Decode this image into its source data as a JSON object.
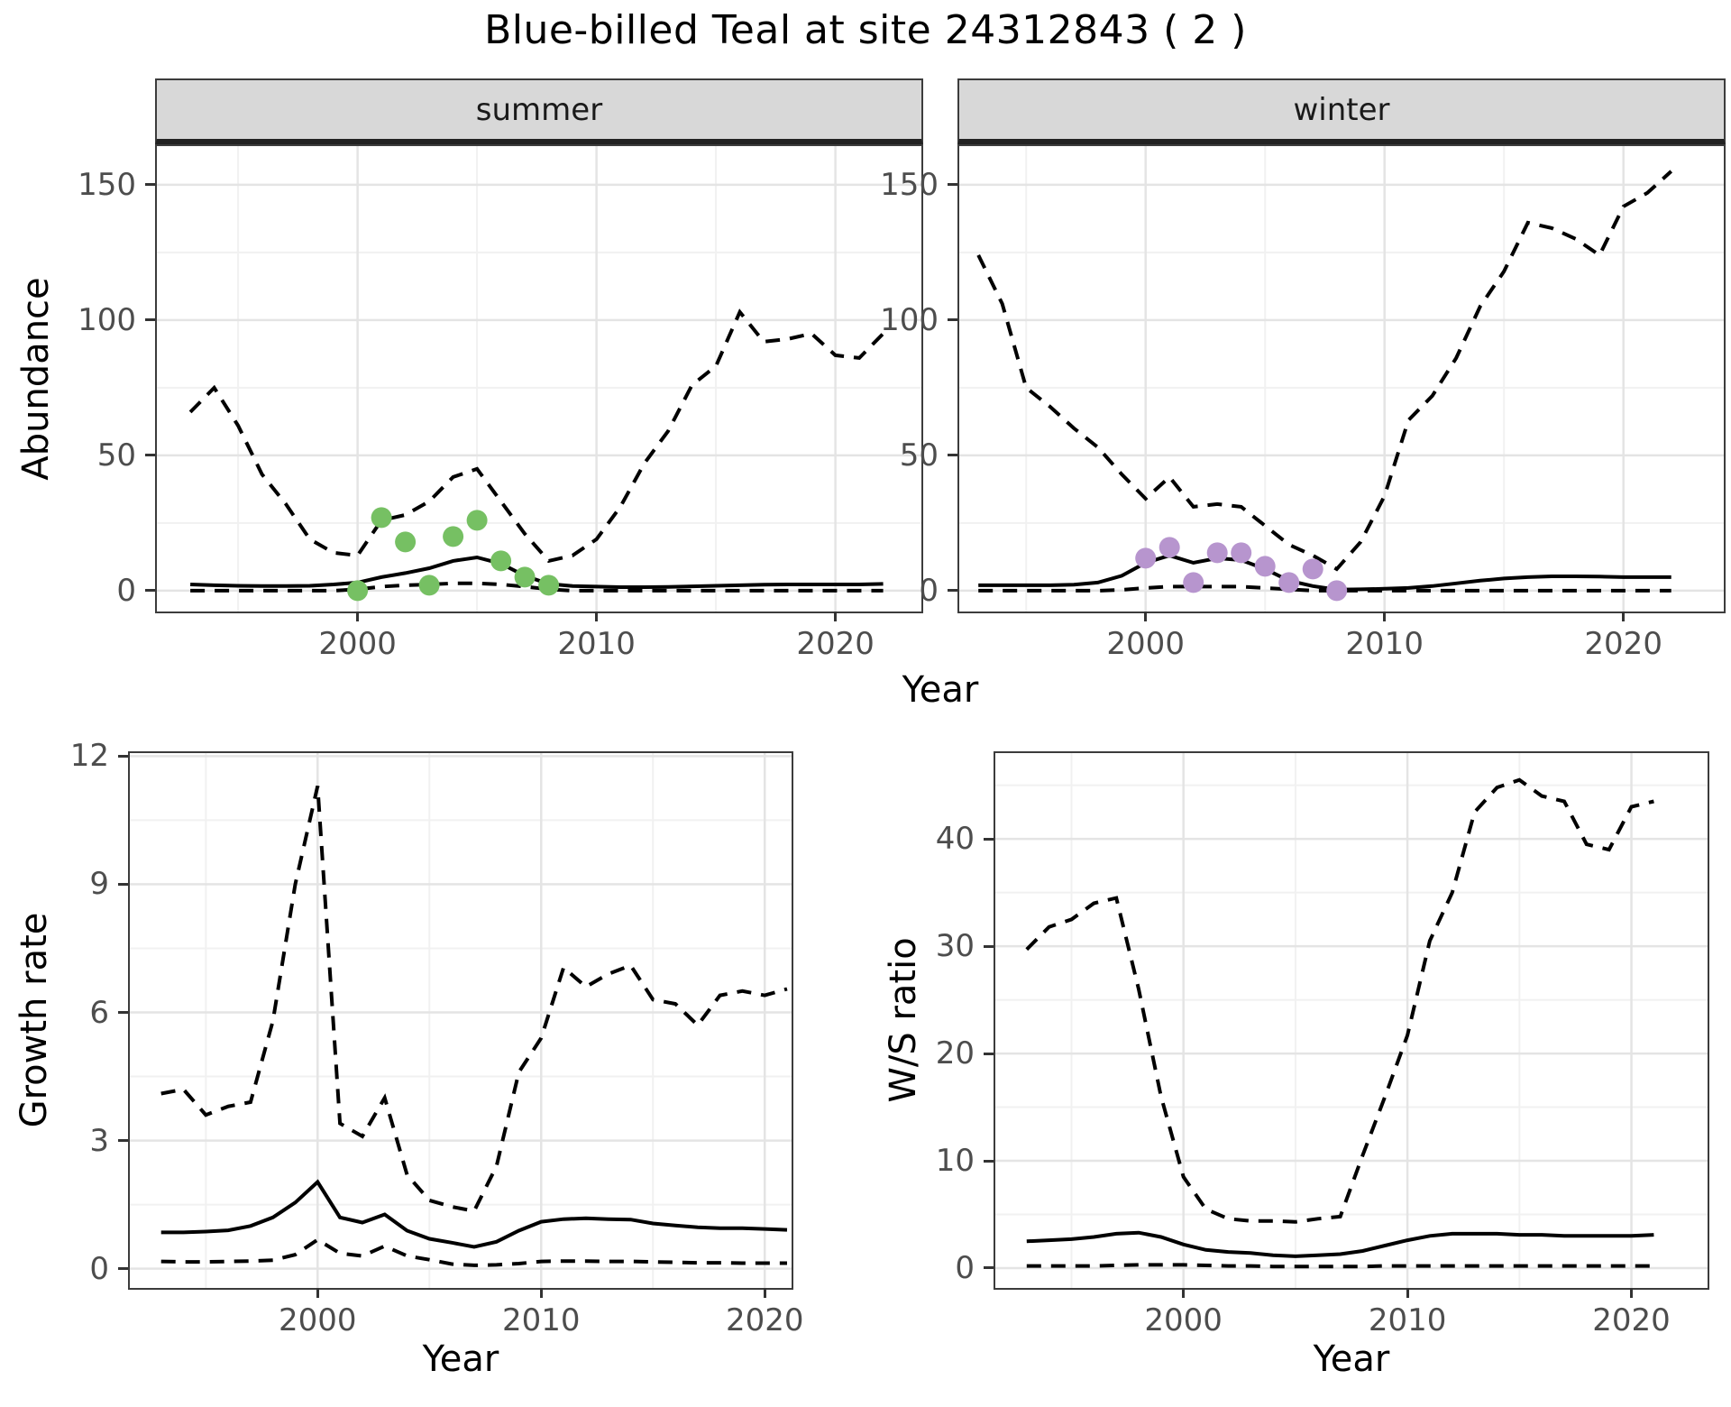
{
  "title": "Blue-billed Teal at site 24312843 ( 2 )",
  "facets": {
    "summer": "summer",
    "winter": "winter"
  },
  "axes": {
    "abundance": "Abundance",
    "year_top": "Year",
    "growth": "Growth rate",
    "year_bottom_left": "Year",
    "ws": "W/S ratio",
    "year_bottom_right": "Year"
  },
  "styles": {
    "line_color": "#000000",
    "grid_major": "#e4e4e4",
    "grid_minor": "#f1f1f1",
    "strip_bg": "#d8d8d8",
    "tick_text": "#4d4d4d",
    "summer_point_color": "#76c063",
    "winter_point_color": "#b795ce"
  },
  "chart_data": [
    {
      "id": "summer",
      "type": "line",
      "facet_label": "summer",
      "xlabel": "Year",
      "ylabel": "Abundance",
      "x_range": [
        1991.6,
        2023.6
      ],
      "y_range": [
        -7.7,
        164.3
      ],
      "x_ticks": [
        2000,
        2010,
        2020
      ],
      "x_minor": [
        1995,
        2005,
        2015
      ],
      "y_ticks": [
        0,
        50,
        100,
        150
      ],
      "y_minor": [
        25,
        75,
        125
      ],
      "years": [
        1993,
        1994,
        1995,
        1996,
        1997,
        1998,
        1999,
        2000,
        2001,
        2002,
        2003,
        2004,
        2005,
        2006,
        2007,
        2008,
        2009,
        2010,
        2011,
        2012,
        2013,
        2014,
        2015,
        2016,
        2017,
        2018,
        2019,
        2020,
        2021,
        2022
      ],
      "series": [
        {
          "name": "upper_ci",
          "style": "dashed",
          "values": [
            66,
            75,
            61,
            43,
            32,
            19,
            14,
            13,
            26,
            28,
            33,
            42,
            45,
            33,
            21,
            11,
            13,
            19,
            31,
            47,
            59,
            76,
            83,
            103,
            92,
            93,
            95,
            87,
            86,
            95
          ]
        },
        {
          "name": "estimate",
          "style": "solid",
          "values": [
            2.3,
            2.0,
            1.8,
            1.7,
            1.7,
            1.8,
            2.3,
            3.0,
            5.0,
            6.5,
            8.3,
            11.0,
            12.3,
            10.0,
            5.5,
            2.5,
            1.7,
            1.5,
            1.3,
            1.3,
            1.4,
            1.6,
            1.8,
            2.0,
            2.2,
            2.3,
            2.3,
            2.3,
            2.3,
            2.5
          ]
        },
        {
          "name": "lower_ci",
          "style": "dashed",
          "values": [
            0,
            0,
            0,
            0,
            0,
            0,
            0,
            0.5,
            1.5,
            2.0,
            2.3,
            2.7,
            2.7,
            2.3,
            1.5,
            0.5,
            0,
            0,
            0,
            0,
            0,
            0,
            0,
            0,
            0,
            0,
            0,
            0,
            0,
            0
          ]
        }
      ],
      "points": {
        "name": "summer_observations",
        "color": "#76c063",
        "years": [
          2000,
          2001,
          2002,
          2003,
          2004,
          2005,
          2006,
          2007,
          2008
        ],
        "values": [
          0,
          27,
          18,
          2,
          20,
          26,
          11,
          5,
          2
        ]
      }
    },
    {
      "id": "winter",
      "type": "line",
      "facet_label": "winter",
      "xlabel": "Year",
      "ylabel": "Abundance",
      "x_range": [
        1992.2,
        2024.2
      ],
      "y_range": [
        -7.7,
        164.3
      ],
      "x_ticks": [
        2000,
        2010,
        2020
      ],
      "x_minor": [
        1995,
        2005,
        2015
      ],
      "y_ticks": [
        0,
        50,
        100,
        150
      ],
      "y_minor": [
        25,
        75,
        125
      ],
      "years": [
        1993,
        1994,
        1995,
        1996,
        1997,
        1998,
        1999,
        2000,
        2001,
        2002,
        2003,
        2004,
        2005,
        2006,
        2007,
        2008,
        2009,
        2010,
        2011,
        2012,
        2013,
        2014,
        2015,
        2016,
        2017,
        2018,
        2019,
        2020,
        2021,
        2022
      ],
      "series": [
        {
          "name": "upper_ci",
          "style": "dashed",
          "values": [
            124,
            106,
            75,
            68,
            60,
            53,
            43,
            34,
            42,
            31,
            32,
            31,
            24,
            17,
            13,
            8,
            18,
            35,
            63,
            72,
            86,
            105,
            118,
            136,
            134,
            130,
            124,
            142,
            147,
            155
          ]
        },
        {
          "name": "estimate",
          "style": "solid",
          "values": [
            2,
            2,
            2,
            2,
            2.2,
            3,
            5.5,
            10.3,
            13,
            10.3,
            12,
            11.3,
            8,
            3.7,
            1.7,
            0.4,
            0.5,
            0.7,
            1,
            1.7,
            2.7,
            3.7,
            4.5,
            5,
            5.3,
            5.3,
            5.2,
            5,
            5,
            5
          ]
        },
        {
          "name": "lower_ci",
          "style": "dashed",
          "values": [
            0,
            0,
            0,
            0,
            0,
            0,
            0.3,
            1,
            1.5,
            1.5,
            1.5,
            1.5,
            1,
            0.5,
            0,
            0,
            0,
            0,
            0,
            0,
            0,
            0,
            0,
            0,
            0,
            0,
            0,
            0,
            0,
            0
          ]
        }
      ],
      "points": {
        "name": "winter_observations",
        "color": "#b795ce",
        "years": [
          2000,
          2001,
          2002,
          2003,
          2004,
          2005,
          2006,
          2007,
          2008
        ],
        "values": [
          12,
          16,
          3,
          14,
          14,
          9,
          3,
          8,
          0
        ]
      }
    },
    {
      "id": "growth",
      "type": "line",
      "facet_label": "",
      "xlabel": "Year",
      "ylabel": "Growth rate",
      "x_range": [
        1991.6,
        2021.2
      ],
      "y_range": [
        -0.45,
        12.07
      ],
      "x_ticks": [
        2000,
        2010,
        2020
      ],
      "x_minor": [
        1995,
        2005,
        2015
      ],
      "y_ticks": [
        0,
        3,
        6,
        9,
        12
      ],
      "y_minor": [
        1.5,
        4.5,
        7.5,
        10.5
      ],
      "years": [
        1993,
        1994,
        1995,
        1996,
        1997,
        1998,
        1999,
        2000,
        2001,
        2002,
        2003,
        2004,
        2005,
        2006,
        2007,
        2008,
        2009,
        2010,
        2011,
        2012,
        2013,
        2014,
        2015,
        2016,
        2017,
        2018,
        2019,
        2020,
        2021
      ],
      "series": [
        {
          "name": "upper_ci",
          "style": "dashed",
          "values": [
            4.1,
            4.2,
            3.6,
            3.8,
            3.9,
            5.8,
            9.0,
            11.3,
            3.4,
            3.1,
            4.0,
            2.2,
            1.6,
            1.45,
            1.35,
            2.4,
            4.6,
            5.4,
            7.05,
            6.6,
            6.9,
            7.1,
            6.3,
            6.2,
            5.7,
            6.4,
            6.5,
            6.4,
            6.55
          ]
        },
        {
          "name": "estimate",
          "style": "solid",
          "values": [
            0.85,
            0.85,
            0.87,
            0.9,
            1.0,
            1.2,
            1.55,
            2.03,
            1.2,
            1.08,
            1.27,
            0.89,
            0.7,
            0.61,
            0.51,
            0.63,
            0.89,
            1.1,
            1.16,
            1.18,
            1.16,
            1.15,
            1.06,
            1.01,
            0.97,
            0.95,
            0.95,
            0.93,
            0.91
          ]
        },
        {
          "name": "lower_ci",
          "style": "dashed",
          "values": [
            0.17,
            0.16,
            0.16,
            0.17,
            0.18,
            0.2,
            0.33,
            0.68,
            0.36,
            0.3,
            0.53,
            0.3,
            0.21,
            0.11,
            0.08,
            0.09,
            0.12,
            0.17,
            0.18,
            0.18,
            0.17,
            0.17,
            0.16,
            0.15,
            0.14,
            0.14,
            0.13,
            0.13,
            0.13
          ]
        }
      ],
      "points": null
    },
    {
      "id": "ws",
      "type": "line",
      "facet_label": "",
      "xlabel": "Year",
      "ylabel": "W/S ratio",
      "x_range": [
        1991.6,
        2023.4
      ],
      "y_range": [
        -1.85,
        48.0
      ],
      "x_ticks": [
        2000,
        2010,
        2020
      ],
      "x_minor": [
        1995,
        2005,
        2015
      ],
      "y_ticks": [
        0,
        10,
        20,
        30,
        40
      ],
      "y_minor": [
        5,
        15,
        25,
        35,
        45
      ],
      "years": [
        1993,
        1994,
        1995,
        1996,
        1997,
        1998,
        1999,
        2000,
        2001,
        2002,
        2003,
        2004,
        2005,
        2006,
        2007,
        2008,
        2009,
        2010,
        2011,
        2012,
        2013,
        2014,
        2015,
        2016,
        2017,
        2018,
        2019,
        2020,
        2021
      ],
      "series": [
        {
          "name": "upper_ci",
          "style": "dashed",
          "values": [
            29.7,
            31.8,
            32.5,
            34.0,
            34.5,
            26.0,
            16.0,
            8.5,
            5.5,
            4.6,
            4.4,
            4.4,
            4.3,
            4.6,
            4.8,
            10.5,
            16.0,
            21.7,
            30.5,
            35.0,
            42.5,
            44.8,
            45.5,
            44.0,
            43.5,
            39.5,
            39.0,
            43.0,
            43.5
          ]
        },
        {
          "name": "estimate",
          "style": "solid",
          "values": [
            2.5,
            2.6,
            2.7,
            2.9,
            3.2,
            3.3,
            2.9,
            2.2,
            1.7,
            1.5,
            1.4,
            1.2,
            1.1,
            1.2,
            1.3,
            1.6,
            2.1,
            2.6,
            3.0,
            3.2,
            3.2,
            3.2,
            3.1,
            3.1,
            3.0,
            3.0,
            3.0,
            3.0,
            3.1
          ]
        },
        {
          "name": "lower_ci",
          "style": "dashed",
          "values": [
            0.2,
            0.2,
            0.2,
            0.2,
            0.25,
            0.3,
            0.3,
            0.3,
            0.25,
            0.2,
            0.2,
            0.15,
            0.15,
            0.15,
            0.15,
            0.15,
            0.2,
            0.2,
            0.2,
            0.2,
            0.2,
            0.2,
            0.2,
            0.2,
            0.2,
            0.2,
            0.2,
            0.2,
            0.2
          ]
        }
      ],
      "points": null
    }
  ]
}
